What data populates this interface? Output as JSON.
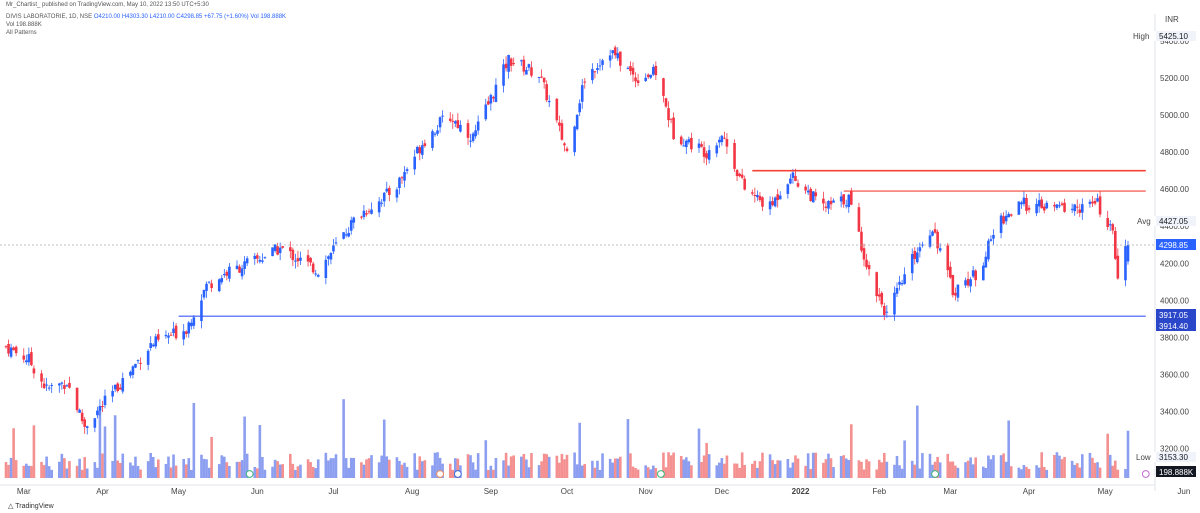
{
  "header": {
    "publisher": "Mr_Chartist_ published on TradingView.com, May 10, 2022 13:50 UTC+5:30",
    "symbol": "DIVIS LABORATORIE, 1D, NSE",
    "o": "O4210.00",
    "h": "H4303.30",
    "l": "L4210.00",
    "c": "C4298.85",
    "chg": "+67.75 (+1.60%)",
    "vol": "Vol 198.888K",
    "vol_line": "Vol  198.888K",
    "patterns": "All Patterns"
  },
  "currency": "INR",
  "price_tags": {
    "high_label": "High",
    "high_value": "5425.10",
    "avg_label": "Avg",
    "avg_value": "4427.05",
    "last_value": "4298.85",
    "support1": "3917.05",
    "support2": "3914.40",
    "low_label": "Low",
    "low_value": "3153.30",
    "volume_value": "198.888K"
  },
  "footer": "TradingView",
  "colors": {
    "up": "#2962ff",
    "down": "#f23645",
    "vol_up": "#8c9ef0",
    "vol_down": "#f4908f",
    "support": "#3d5afe",
    "resistance": "#f44336"
  },
  "chart_data": {
    "type": "candlestick",
    "title": "DIVIS LABORATORIE, 1D, NSE",
    "x_ticks": [
      "Mar",
      "Apr",
      "May",
      "Jun",
      "Jul",
      "Aug",
      "Sep",
      "Oct",
      "Nov",
      "Dec",
      "2022",
      "Feb",
      "Mar",
      "Apr",
      "May",
      "Jun"
    ],
    "y_ticks": [
      3200,
      3400,
      3600,
      3800,
      4000,
      4200,
      4400,
      4600,
      4800,
      5000,
      5200,
      5400
    ],
    "ylim": [
      3090,
      5520
    ],
    "anchors": [
      [
        "2021-02-22",
        3750
      ],
      [
        "2021-03-03",
        3680
      ],
      [
        "2021-03-10",
        3520
      ],
      [
        "2021-03-18",
        3560
      ],
      [
        "2021-03-25",
        3320
      ],
      [
        "2021-04-05",
        3500
      ],
      [
        "2021-04-20",
        3760
      ],
      [
        "2021-05-04",
        3850
      ],
      [
        "2021-05-12",
        4080
      ],
      [
        "2021-05-20",
        4150
      ],
      [
        "2021-06-01",
        4220
      ],
      [
        "2021-06-10",
        4280
      ],
      [
        "2021-06-25",
        4160
      ],
      [
        "2021-07-10",
        4450
      ],
      [
        "2021-07-25",
        4600
      ],
      [
        "2021-08-05",
        4850
      ],
      [
        "2021-08-15",
        5000
      ],
      [
        "2021-08-25",
        4880
      ],
      [
        "2021-09-08",
        5300
      ],
      [
        "2021-09-20",
        5220
      ],
      [
        "2021-10-01",
        4800
      ],
      [
        "2021-10-08",
        5200
      ],
      [
        "2021-10-18",
        5350
      ],
      [
        "2021-10-28",
        5200
      ],
      [
        "2021-11-05",
        5230
      ],
      [
        "2021-11-12",
        4900
      ],
      [
        "2021-11-25",
        4800
      ],
      [
        "2021-12-01",
        4900
      ],
      [
        "2021-12-10",
        4600
      ],
      [
        "2021-12-20",
        4500
      ],
      [
        "2021-12-28",
        4680
      ],
      [
        "2022-01-10",
        4500
      ],
      [
        "2022-01-20",
        4550
      ],
      [
        "2022-01-28",
        4150
      ],
      [
        "2022-02-04",
        3920
      ],
      [
        "2022-02-15",
        4250
      ],
      [
        "2022-02-22",
        4400
      ],
      [
        "2022-03-02",
        4050
      ],
      [
        "2022-03-12",
        4150
      ],
      [
        "2022-03-20",
        4430
      ],
      [
        "2022-03-30",
        4520
      ],
      [
        "2022-04-08",
        4500
      ],
      [
        "2022-04-20",
        4500
      ],
      [
        "2022-04-28",
        4520
      ],
      [
        "2022-05-04",
        4350
      ],
      [
        "2022-05-06",
        4150
      ],
      [
        "2022-05-10",
        4299
      ]
    ],
    "last": {
      "open": 4210.0,
      "high": 4303.3,
      "low": 4210.0,
      "close": 4298.85,
      "volume": "198.888K"
    },
    "stats": {
      "high": 5425.1,
      "avg": 4427.05,
      "low": 3153.3
    },
    "lines": [
      {
        "kind": "support",
        "from": "2021-05-01",
        "to": "2022-05-17",
        "value": 3914.4
      },
      {
        "kind": "resistance",
        "from": "2021-12-13",
        "to": "2022-05-17",
        "value": 4700
      },
      {
        "kind": "resistance",
        "from": "2022-01-18",
        "to": "2022-05-17",
        "value": 4590
      }
    ]
  }
}
